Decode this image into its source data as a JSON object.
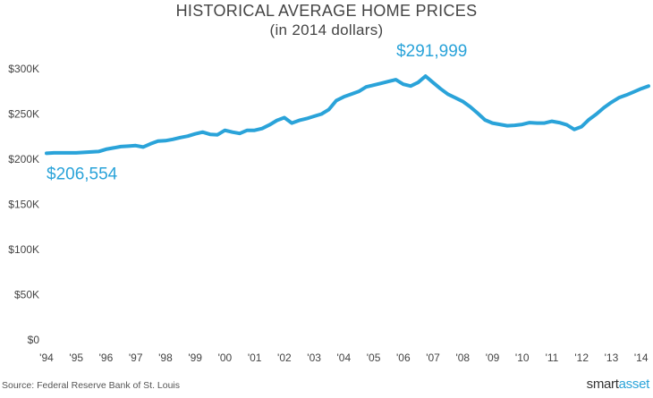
{
  "chart_data": {
    "type": "line",
    "title": "HISTORICAL AVERAGE HOME PRICES",
    "subtitle": "(in 2014 dollars)",
    "xlabel": "",
    "ylabel": "",
    "ylim": [
      0,
      300000
    ],
    "xlim": [
      1994,
      2014.25
    ],
    "y_ticks": [
      {
        "value": 0,
        "label": "$0"
      },
      {
        "value": 50000,
        "label": "$50K"
      },
      {
        "value": 100000,
        "label": "$100K"
      },
      {
        "value": 150000,
        "label": "$150K"
      },
      {
        "value": 200000,
        "label": "$200K"
      },
      {
        "value": 250000,
        "label": "$250K"
      },
      {
        "value": 300000,
        "label": "$300K"
      }
    ],
    "x_ticks": [
      {
        "value": 1994,
        "label": "'94"
      },
      {
        "value": 1995,
        "label": "'95"
      },
      {
        "value": 1996,
        "label": "'96"
      },
      {
        "value": 1997,
        "label": "'97"
      },
      {
        "value": 1998,
        "label": "'98"
      },
      {
        "value": 1999,
        "label": "'99"
      },
      {
        "value": 2000,
        "label": "'00"
      },
      {
        "value": 2001,
        "label": "'01"
      },
      {
        "value": 2002,
        "label": "'02"
      },
      {
        "value": 2003,
        "label": "'03"
      },
      {
        "value": 2004,
        "label": "'04"
      },
      {
        "value": 2005,
        "label": "'05"
      },
      {
        "value": 2006,
        "label": "'06"
      },
      {
        "value": 2007,
        "label": "'07"
      },
      {
        "value": 2008,
        "label": "'08"
      },
      {
        "value": 2009,
        "label": "'09"
      },
      {
        "value": 2010,
        "label": "'10"
      },
      {
        "value": 2011,
        "label": "'11"
      },
      {
        "value": 2012,
        "label": "'12"
      },
      {
        "value": 2013,
        "label": "'13"
      },
      {
        "value": 2014,
        "label": "'14"
      }
    ],
    "grid": false,
    "line_color": "#2aa3d9",
    "series": [
      {
        "x": [
          1994.0,
          1994.25,
          1994.5,
          1994.75,
          1995.0,
          1995.25,
          1995.5,
          1995.75,
          1996.0,
          1996.25,
          1996.5,
          1996.75,
          1997.0,
          1997.25,
          1997.5,
          1997.75,
          1998.0,
          1998.25,
          1998.5,
          1998.75,
          1999.0,
          1999.25,
          1999.5,
          1999.75,
          2000.0,
          2000.25,
          2000.5,
          2000.75,
          2001.0,
          2001.25,
          2001.5,
          2001.75,
          2002.0,
          2002.25,
          2002.5,
          2002.75,
          2003.0,
          2003.25,
          2003.5,
          2003.75,
          2004.0,
          2004.25,
          2004.5,
          2004.75,
          2005.0,
          2005.25,
          2005.5,
          2005.75,
          2006.0,
          2006.25,
          2006.5,
          2006.75,
          2007.0,
          2007.25,
          2007.5,
          2007.75,
          2008.0,
          2008.25,
          2008.5,
          2008.75,
          2009.0,
          2009.25,
          2009.5,
          2009.75,
          2010.0,
          2010.25,
          2010.5,
          2010.75,
          2011.0,
          2011.25,
          2011.5,
          2011.75,
          2012.0,
          2012.25,
          2012.5,
          2012.75,
          2013.0,
          2013.25,
          2013.5,
          2013.75,
          2014.0,
          2014.25
        ],
        "values": [
          206554,
          207000,
          207000,
          207000,
          207000,
          207500,
          208000,
          208500,
          211000,
          212500,
          214000,
          214500,
          215000,
          213500,
          217000,
          220000,
          220500,
          222000,
          224000,
          225500,
          228000,
          230000,
          227500,
          227000,
          232000,
          230000,
          228500,
          232000,
          232000,
          234000,
          238000,
          243000,
          246000,
          240000,
          243000,
          245000,
          247500,
          250000,
          255000,
          265000,
          269000,
          272000,
          275000,
          280000,
          282000,
          284000,
          286000,
          288000,
          283000,
          281000,
          285000,
          291999,
          285000,
          278000,
          272000,
          268000,
          264000,
          258000,
          251000,
          243500,
          240000,
          238500,
          237000,
          237500,
          238500,
          240500,
          240000,
          240000,
          242000,
          240500,
          238000,
          233000,
          236000,
          244000,
          250000,
          257000,
          263000,
          268000,
          271000,
          274500,
          278000,
          281000
        ]
      }
    ],
    "annotations": [
      {
        "text": "$206,554",
        "x": 1994.0,
        "y": 206554
      },
      {
        "text": "$291,999",
        "x": 2006.75,
        "y": 291999
      }
    ]
  },
  "footer": {
    "source": "Source: Federal Reserve Bank of St. Louis",
    "brand_main": "smart",
    "brand_accent": "asset"
  }
}
